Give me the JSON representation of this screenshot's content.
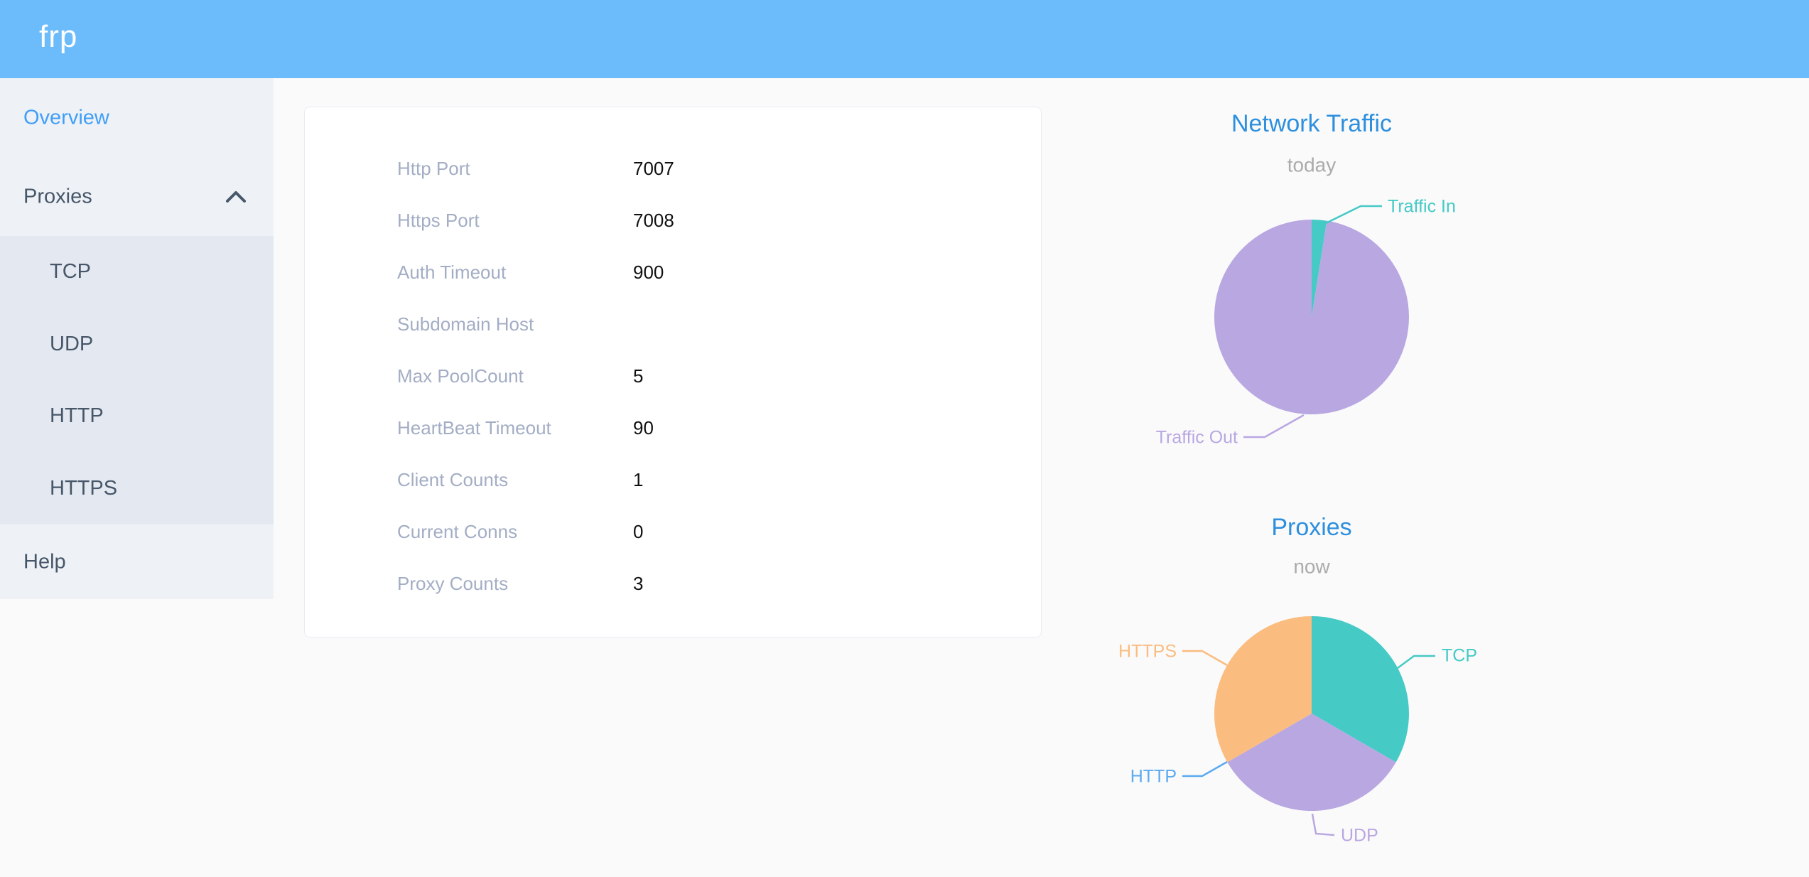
{
  "header": {
    "logo_text": "frp"
  },
  "sidebar": {
    "overview_label": "Overview",
    "proxies_label": "Proxies",
    "submenu": [
      {
        "label": "TCP"
      },
      {
        "label": "UDP"
      },
      {
        "label": "HTTP"
      },
      {
        "label": "HTTPS"
      }
    ],
    "help_label": "Help"
  },
  "server_info": {
    "rows": [
      {
        "label": "Http Port",
        "value": "7007"
      },
      {
        "label": "Https Port",
        "value": "7008"
      },
      {
        "label": "Auth Timeout",
        "value": "900"
      },
      {
        "label": "Subdomain Host",
        "value": ""
      },
      {
        "label": "Max PoolCount",
        "value": "5"
      },
      {
        "label": "HeartBeat Timeout",
        "value": "90"
      },
      {
        "label": "Client Counts",
        "value": "1"
      },
      {
        "label": "Current Conns",
        "value": "0"
      },
      {
        "label": "Proxy Counts",
        "value": "3"
      }
    ]
  },
  "chart_data": [
    {
      "type": "pie",
      "title": "Network Traffic",
      "subtitle": "today",
      "unit": "percent share of today's traffic",
      "legend_position": "callout-labels",
      "slices": [
        {
          "name": "Traffic In",
          "value": 2.5,
          "color": "#45cac6"
        },
        {
          "name": "Traffic Out",
          "value": 97.5,
          "color": "#b9a7e2"
        }
      ]
    },
    {
      "type": "pie",
      "title": "Proxies",
      "subtitle": "now",
      "unit": "proxy count",
      "legend_position": "callout-labels",
      "slices": [
        {
          "name": "TCP",
          "value": 1,
          "color": "#45cac6"
        },
        {
          "name": "UDP",
          "value": 1,
          "color": "#b9a7e2"
        },
        {
          "name": "HTTP",
          "value": 0,
          "color": "#5aaaf0"
        },
        {
          "name": "HTTPS",
          "value": 1,
          "color": "#fbbc80"
        }
      ]
    }
  ],
  "colors": {
    "header_bg": "#6cbcfb",
    "active_menu_blue": "#409ef8",
    "chart_title_blue": "#2d8fdd",
    "subtitle_gray": "#ababab",
    "menu_text": "#475669",
    "card_label_gray": "#a3adc4"
  }
}
